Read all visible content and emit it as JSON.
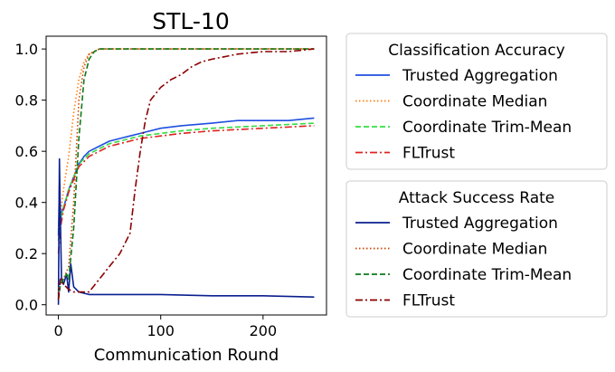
{
  "chart_data": {
    "type": "line",
    "title": "STL-10",
    "xlabel": "Communication Round",
    "ylabel": "",
    "xlim": [
      -12,
      262
    ],
    "ylim": [
      -0.04,
      1.05
    ],
    "x_ticks": [
      0,
      100,
      200
    ],
    "x_tick_labels": [
      "0",
      "100",
      "200"
    ],
    "y_ticks": [
      0.0,
      0.2,
      0.4,
      0.6,
      0.8,
      1.0
    ],
    "y_tick_labels": [
      "0.0",
      "0.2",
      "0.4",
      "0.6",
      "0.8",
      "1.0"
    ],
    "grid": false,
    "legends": [
      {
        "title": "Classification Accuracy",
        "placement": "right-top",
        "entries": [
          "Trusted Aggregation",
          "Coordinate Median",
          "Coordinate Trim-Mean",
          "FLTrust"
        ]
      },
      {
        "title": "Attack Success Rate",
        "placement": "right-bottom",
        "entries": [
          "Trusted Aggregation",
          "Coordinate Median",
          "Coordinate Trim-Mean",
          "FLTrust"
        ]
      }
    ],
    "series": [
      {
        "name": "Trusted Aggregation",
        "group": "Classification Accuracy",
        "color": "#1f4fe0",
        "dash": "solid",
        "x": [
          0,
          1,
          2,
          3,
          5,
          8,
          10,
          15,
          20,
          25,
          30,
          40,
          50,
          60,
          70,
          80,
          100,
          120,
          150,
          175,
          200,
          225,
          250
        ],
        "y": [
          0.27,
          0.47,
          0.33,
          0.36,
          0.38,
          0.42,
          0.45,
          0.5,
          0.55,
          0.58,
          0.6,
          0.62,
          0.64,
          0.65,
          0.66,
          0.67,
          0.69,
          0.7,
          0.71,
          0.72,
          0.72,
          0.72,
          0.73
        ]
      },
      {
        "name": "Coordinate Median",
        "group": "Classification Accuracy",
        "color": "#ff7f0e",
        "dash": "dotted",
        "x": [
          0,
          2,
          5,
          10,
          15,
          20,
          25,
          30,
          35,
          40,
          50,
          60,
          80,
          100,
          150,
          200,
          250
        ],
        "y": [
          0.3,
          0.35,
          0.45,
          0.58,
          0.75,
          0.88,
          0.95,
          0.98,
          0.99,
          1.0,
          1.0,
          1.0,
          1.0,
          1.0,
          1.0,
          1.0,
          1.0
        ]
      },
      {
        "name": "Coordinate Trim-Mean",
        "group": "Classification Accuracy",
        "color": "#33dd44",
        "dash": "dashed",
        "x": [
          0,
          2,
          5,
          8,
          10,
          15,
          20,
          25,
          30,
          40,
          50,
          60,
          80,
          100,
          120,
          150,
          200,
          250
        ],
        "y": [
          0.25,
          0.33,
          0.38,
          0.42,
          0.45,
          0.5,
          0.55,
          0.57,
          0.59,
          0.61,
          0.63,
          0.64,
          0.66,
          0.67,
          0.68,
          0.69,
          0.7,
          0.71
        ]
      },
      {
        "name": "FLTrust",
        "group": "Classification Accuracy",
        "color": "#dd2222",
        "dash": "dashdot",
        "x": [
          0,
          2,
          5,
          8,
          10,
          15,
          20,
          25,
          30,
          40,
          50,
          60,
          80,
          100,
          120,
          150,
          200,
          250
        ],
        "y": [
          0.2,
          0.3,
          0.37,
          0.41,
          0.44,
          0.49,
          0.54,
          0.56,
          0.58,
          0.6,
          0.62,
          0.63,
          0.65,
          0.66,
          0.67,
          0.68,
          0.69,
          0.7
        ]
      },
      {
        "name": "Trusted Aggregation",
        "group": "Attack Success Rate",
        "color": "#0a1f8f",
        "dash": "solid",
        "x": [
          0,
          1,
          2,
          3,
          5,
          8,
          10,
          12,
          15,
          20,
          30,
          50,
          80,
          100,
          150,
          200,
          250
        ],
        "y": [
          0.0,
          0.57,
          0.33,
          0.1,
          0.08,
          0.12,
          0.05,
          0.16,
          0.07,
          0.05,
          0.04,
          0.04,
          0.04,
          0.04,
          0.035,
          0.035,
          0.03
        ]
      },
      {
        "name": "Coordinate Median",
        "group": "Attack Success Rate",
        "color": "#cc4400",
        "dash": "dotted",
        "x": [
          0,
          2,
          5,
          10,
          15,
          20,
          25,
          30,
          35,
          40,
          50,
          80,
          100,
          150,
          200,
          250
        ],
        "y": [
          0.05,
          0.1,
          0.1,
          0.15,
          0.4,
          0.8,
          0.93,
          0.98,
          0.99,
          1.0,
          1.0,
          1.0,
          1.0,
          1.0,
          1.0,
          1.0
        ]
      },
      {
        "name": "Coordinate Trim-Mean",
        "group": "Attack Success Rate",
        "color": "#0d7a1a",
        "dash": "dashed",
        "x": [
          0,
          2,
          5,
          8,
          10,
          15,
          20,
          25,
          30,
          35,
          40,
          50,
          80,
          100,
          150,
          200,
          250
        ],
        "y": [
          0.02,
          0.08,
          0.1,
          0.12,
          0.1,
          0.3,
          0.65,
          0.88,
          0.96,
          0.99,
          1.0,
          1.0,
          1.0,
          1.0,
          1.0,
          1.0,
          1.0
        ]
      },
      {
        "name": "FLTrust",
        "group": "Attack Success Rate",
        "color": "#8b0000",
        "dash": "dashdot",
        "x": [
          0,
          2,
          5,
          10,
          15,
          20,
          30,
          40,
          50,
          60,
          70,
          75,
          80,
          85,
          90,
          100,
          110,
          120,
          130,
          140,
          150,
          175,
          200,
          225,
          250
        ],
        "y": [
          0.02,
          0.1,
          0.08,
          0.06,
          0.05,
          0.05,
          0.05,
          0.1,
          0.15,
          0.2,
          0.28,
          0.45,
          0.6,
          0.72,
          0.8,
          0.85,
          0.88,
          0.9,
          0.93,
          0.95,
          0.96,
          0.98,
          0.99,
          0.99,
          1.0
        ]
      }
    ]
  }
}
